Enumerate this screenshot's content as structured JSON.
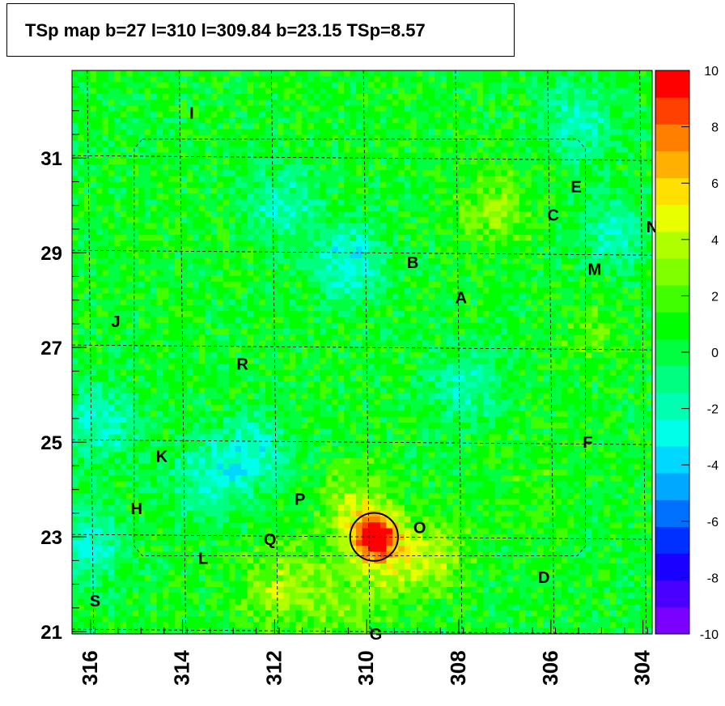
{
  "title": "TSp map b=27 l=310 l=309.84 b=23.15 TSp=8.57",
  "colors": {
    "frame": "#000000",
    "grid": "#000000",
    "marker_circle": "#000000"
  },
  "chart_data": {
    "type": "heatmap",
    "title": "TSp map b=27 l=310 l=309.84 b=23.15 TSp=8.57",
    "xlabel": "",
    "ylabel": "",
    "xlim": [
      316.4,
      303.8
    ],
    "ylim": [
      20.95,
      32.85
    ],
    "x_reversed": true,
    "x_ticks": [
      316,
      314,
      312,
      310,
      308,
      306,
      304
    ],
    "y_ticks": [
      21,
      23,
      25,
      27,
      29,
      31
    ],
    "z_range": [
      -10,
      10
    ],
    "colorbar_ticks": [
      10,
      8,
      6,
      4,
      2,
      0,
      -2,
      -4,
      -6,
      -8,
      -10
    ],
    "colorbar_colors": [
      "#7a00ff",
      "#4a00ff",
      "#1a00ff",
      "#0030ff",
      "#0070ff",
      "#00a8ff",
      "#00d8ff",
      "#00ffe8",
      "#00ffb0",
      "#00ff80",
      "#00ff40",
      "#00ff00",
      "#40ff00",
      "#80ff00",
      "#b0ff00",
      "#e8ff00",
      "#ffe000",
      "#ffb000",
      "#ff8000",
      "#ff4000",
      "#ff0000"
    ],
    "peak": {
      "l": 309.84,
      "b": 23.15,
      "value": 8.57
    },
    "hotspots": [
      {
        "l": 309.84,
        "b": 23.0,
        "value": 9.5
      },
      {
        "l": 310.3,
        "b": 23.7,
        "value": 3.5
      },
      {
        "l": 309.5,
        "b": 22.4,
        "value": 3
      },
      {
        "l": 308.6,
        "b": 22.6,
        "value": 3.5
      },
      {
        "l": 311.5,
        "b": 22.2,
        "value": 2.5
      },
      {
        "l": 310.5,
        "b": 21.5,
        "value": 2.5
      },
      {
        "l": 307.2,
        "b": 29.9,
        "value": 3
      },
      {
        "l": 305.1,
        "b": 27.4,
        "value": 2
      },
      {
        "l": 312.1,
        "b": 21.8,
        "value": 2.5
      },
      {
        "l": 306.4,
        "b": 24.0,
        "value": 1.5
      }
    ],
    "coldspots": [
      {
        "l": 310.4,
        "b": 28.8,
        "value": -3
      },
      {
        "l": 312.5,
        "b": 24.8,
        "value": -2.5
      },
      {
        "l": 315.8,
        "b": 25.4,
        "value": -2.5
      },
      {
        "l": 313.5,
        "b": 24.2,
        "value": -2
      },
      {
        "l": 316.0,
        "b": 22.8,
        "value": -2.5
      },
      {
        "l": 305.4,
        "b": 31.8,
        "value": -2
      },
      {
        "l": 304.6,
        "b": 29.4,
        "value": -2
      },
      {
        "l": 307.8,
        "b": 26.2,
        "value": -2
      },
      {
        "l": 311.8,
        "b": 30.0,
        "value": -2
      }
    ],
    "sources": [
      {
        "label": "A",
        "l": 307.95,
        "b": 28.05
      },
      {
        "label": "B",
        "l": 309.0,
        "b": 28.8
      },
      {
        "label": "C",
        "l": 305.95,
        "b": 29.8
      },
      {
        "label": "D",
        "l": 306.15,
        "b": 22.15
      },
      {
        "label": "E",
        "l": 305.45,
        "b": 30.4
      },
      {
        "label": "F",
        "l": 305.2,
        "b": 25.0
      },
      {
        "label": "G",
        "l": 309.8,
        "b": 20.95
      },
      {
        "label": "H",
        "l": 315.0,
        "b": 23.6
      },
      {
        "label": "I",
        "l": 313.8,
        "b": 31.95
      },
      {
        "label": "J",
        "l": 315.45,
        "b": 27.55
      },
      {
        "label": "K",
        "l": 314.45,
        "b": 24.7
      },
      {
        "label": "L",
        "l": 313.55,
        "b": 22.55
      },
      {
        "label": "M",
        "l": 305.05,
        "b": 28.65
      },
      {
        "label": "N",
        "l": 303.8,
        "b": 29.55
      },
      {
        "label": "O",
        "l": 308.85,
        "b": 23.2
      },
      {
        "label": "P",
        "l": 311.45,
        "b": 23.8
      },
      {
        "label": "Q",
        "l": 312.1,
        "b": 22.95
      },
      {
        "label": "R",
        "l": 312.7,
        "b": 26.65
      },
      {
        "label": "S",
        "l": 315.9,
        "b": 21.65
      }
    ],
    "circle": {
      "l": 309.84,
      "b": 23.0,
      "radius_deg": 0.52
    },
    "grid": "on"
  }
}
